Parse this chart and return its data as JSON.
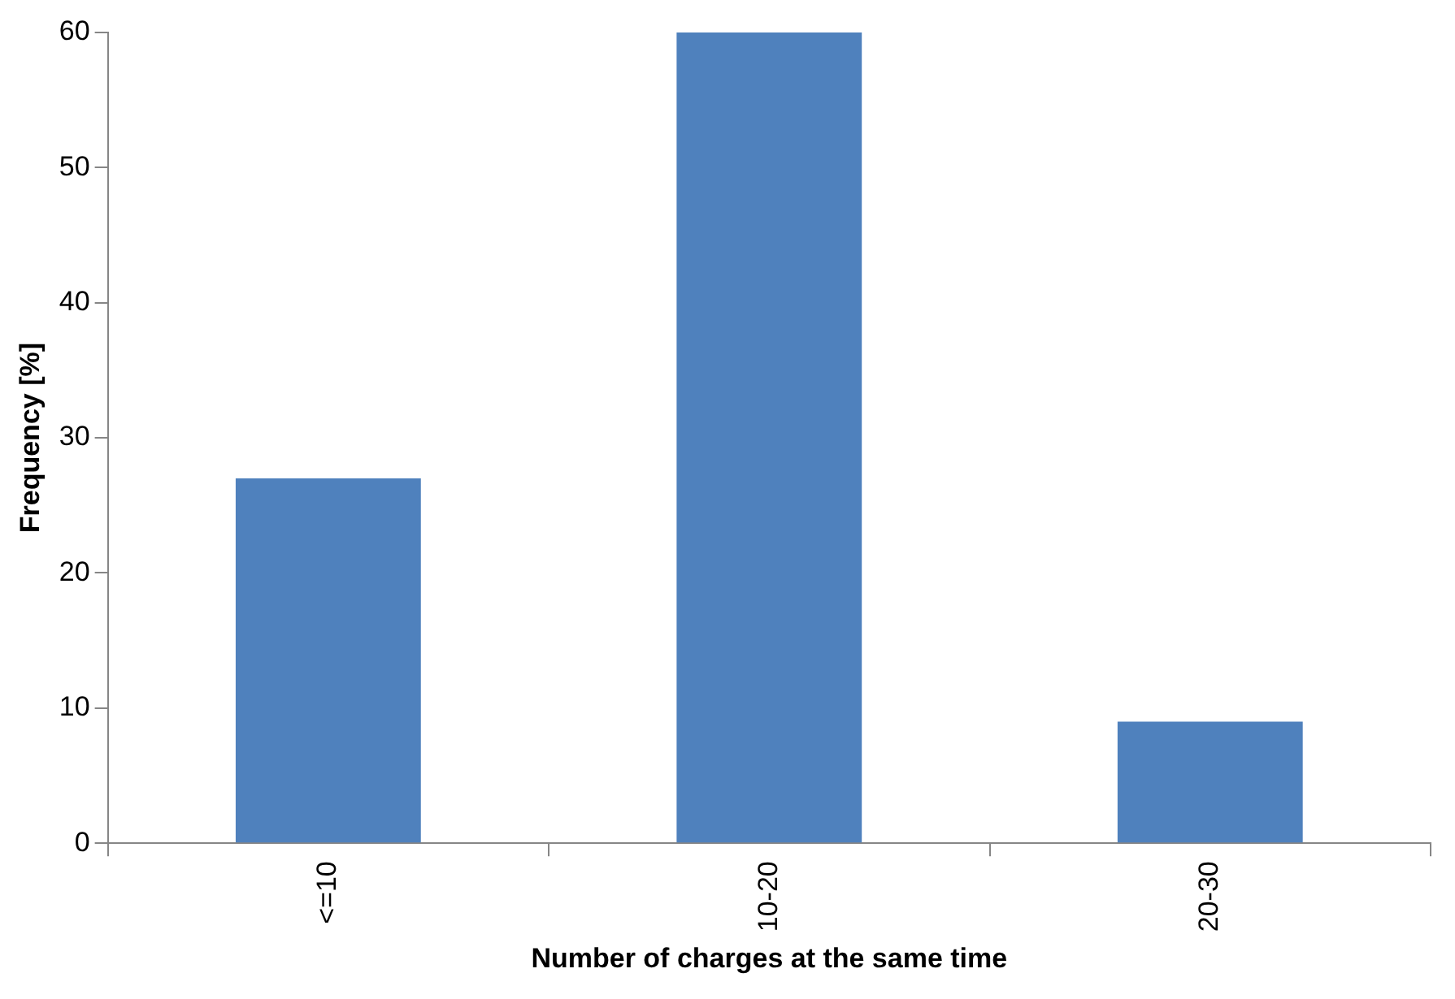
{
  "chart_data": {
    "type": "bar",
    "xlabel": "Number of charges at the same time",
    "ylabel": "Frequency [%]",
    "categories": [
      "<=10",
      "10-20",
      "20-30"
    ],
    "values": [
      27,
      60,
      9
    ],
    "color": "#4f81bd",
    "ylim": [
      0,
      60
    ],
    "yticks": [
      0,
      10,
      20,
      30,
      40,
      50,
      60
    ],
    "grid": false,
    "legend": false
  }
}
